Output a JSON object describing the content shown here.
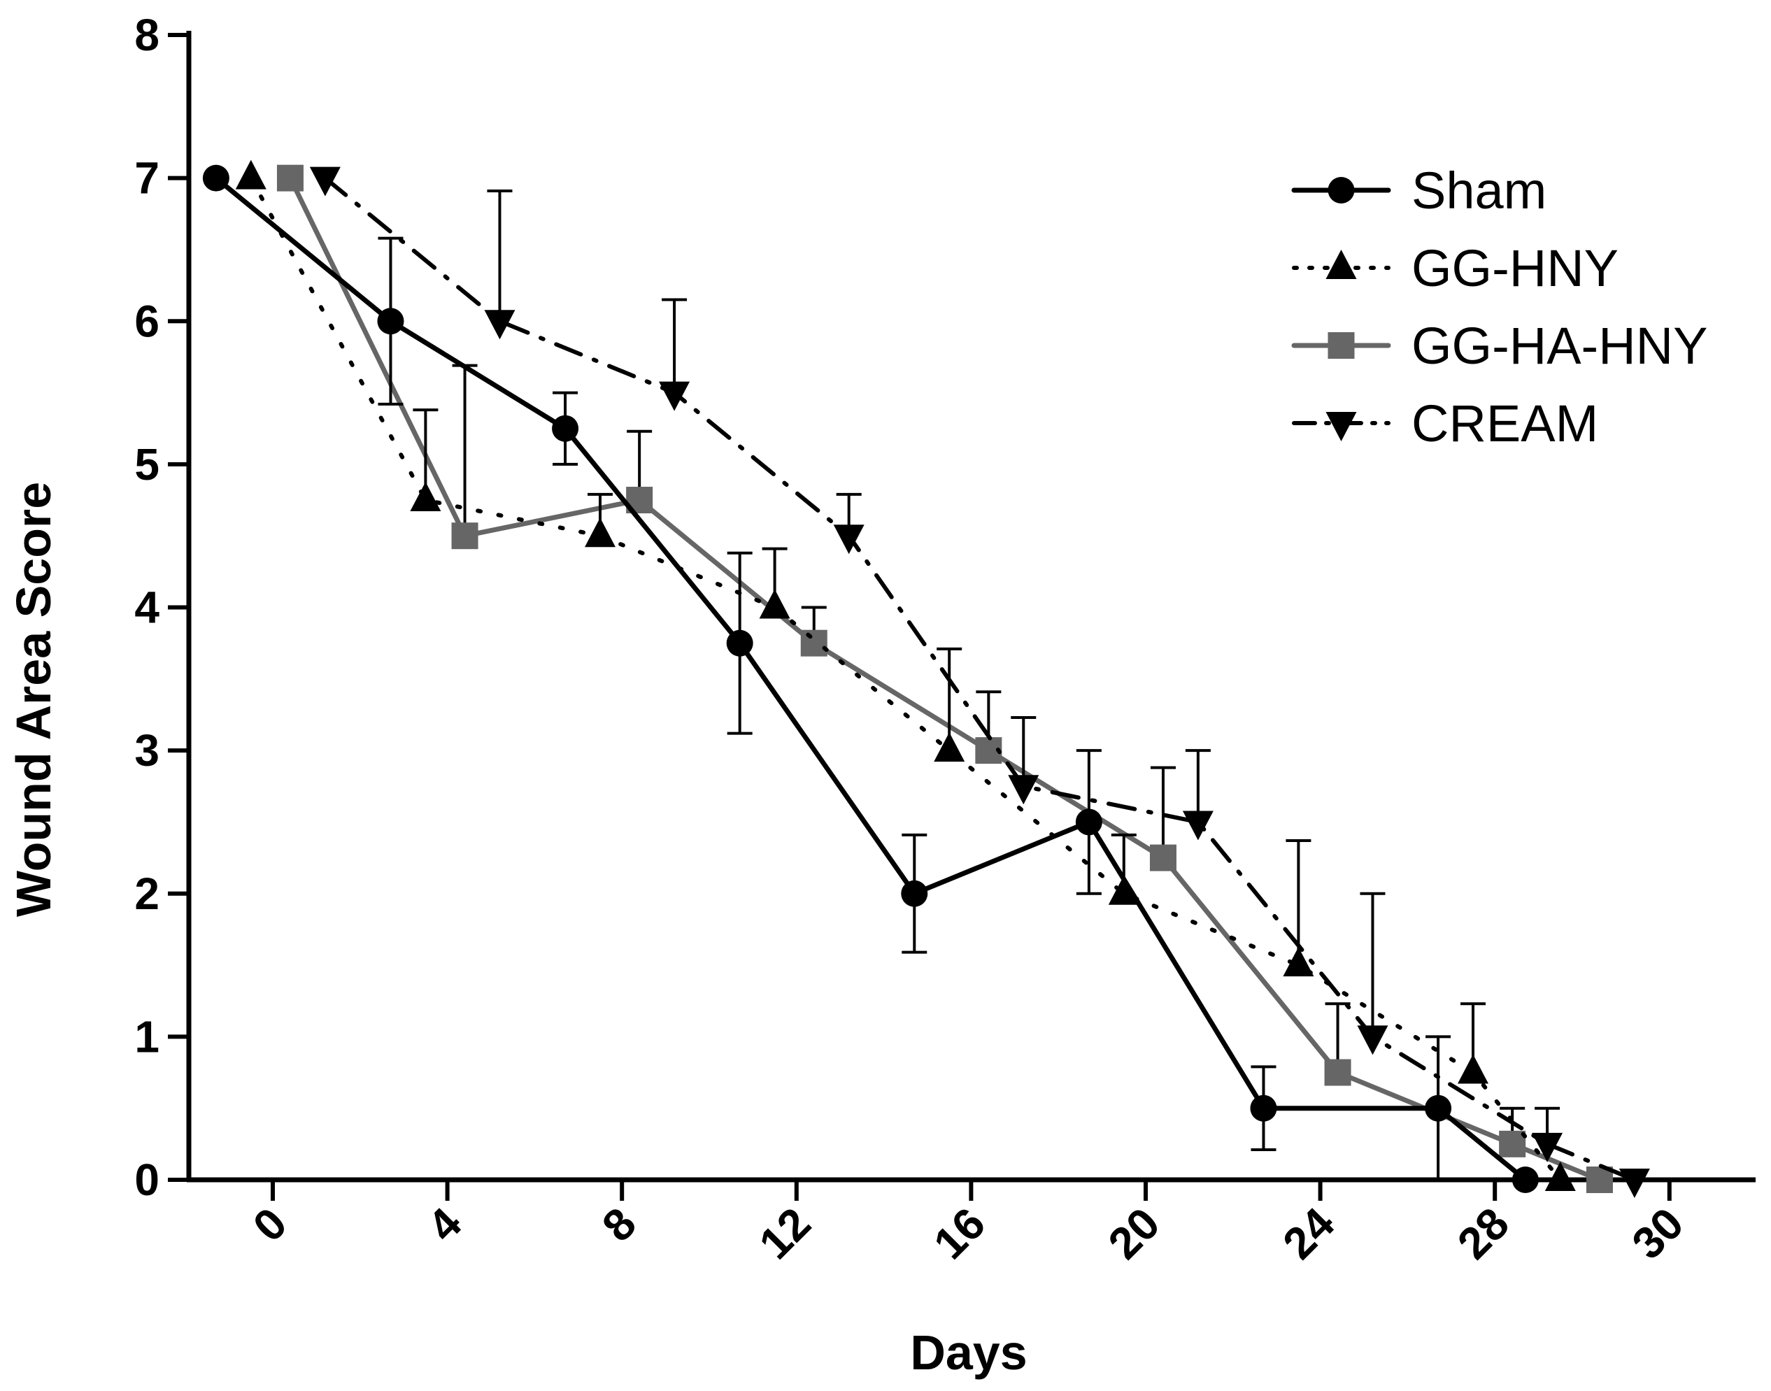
{
  "chart_data": {
    "type": "line",
    "title": "",
    "xlabel": "Days",
    "ylabel": "Wound Area Score",
    "x_categories": [
      "0",
      "4",
      "8",
      "12",
      "16",
      "20",
      "24",
      "28",
      "30"
    ],
    "ylim": [
      0,
      8
    ],
    "y_ticks": [
      "0",
      "1",
      "2",
      "3",
      "4",
      "5",
      "6",
      "7",
      "8"
    ],
    "grid": false,
    "legend_position": "top-right",
    "series": [
      {
        "name": "Sham",
        "marker": "circle",
        "line_style": "solid",
        "color": "#000000",
        "x": [
          -1.3,
          2.7,
          6.7,
          10.7,
          14.7,
          18.7,
          22.7,
          26.7,
          28.7
        ],
        "values": [
          7,
          6,
          5.25,
          3.75,
          2,
          2.5,
          0.5,
          0.5,
          0
        ],
        "error": [
          0,
          0.58,
          0.25,
          0.63,
          0.41,
          0.5,
          0.29,
          0.5,
          0
        ]
      },
      {
        "name": "GG-HNY",
        "marker": "triangle-up",
        "line_style": "dotted",
        "color": "#000000",
        "x": [
          -0.5,
          3.5,
          7.5,
          11.5,
          15.5,
          19.5,
          23.5,
          27.5,
          29.5
        ],
        "values": [
          7,
          4.75,
          4.5,
          4,
          3,
          2,
          1.5,
          0.75,
          0
        ],
        "error": [
          0,
          0.63,
          0.29,
          0.41,
          0.71,
          0.41,
          0.87,
          0.48,
          0
        ]
      },
      {
        "name": "GG-HA-HNY",
        "marker": "square",
        "line_style": "solid",
        "color": "#666666",
        "x": [
          0.4,
          4.4,
          8.4,
          12.4,
          16.4,
          20.4,
          24.4,
          28.4,
          30.4
        ],
        "values": [
          7,
          4.5,
          4.75,
          3.75,
          3,
          2.25,
          0.75,
          0.25,
          0
        ],
        "error": [
          0,
          1.19,
          0.48,
          0.25,
          0.41,
          0.63,
          0.48,
          0.25,
          0
        ]
      },
      {
        "name": "CREAM",
        "marker": "triangle-down",
        "line_style": "dash-dot",
        "color": "#000000",
        "x": [
          1.2,
          5.2,
          9.2,
          13.2,
          17.2,
          21.2,
          25.2,
          29.2,
          31.2
        ],
        "values": [
          7,
          6,
          5.5,
          4.5,
          2.75,
          2.5,
          1,
          0.25,
          0
        ],
        "error": [
          0,
          0.91,
          0.65,
          0.29,
          0.48,
          0.5,
          1,
          0.25,
          0
        ]
      }
    ]
  }
}
